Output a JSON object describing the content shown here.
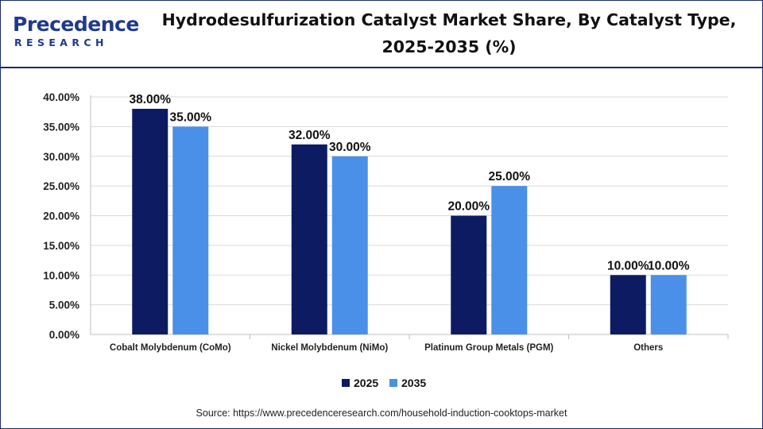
{
  "header": {
    "logo_main": "Precedence",
    "logo_sub": "RESEARCH",
    "title": "Hydrodesulfurization Catalyst Market Share, By Catalyst Type, 2025-2035 (%)"
  },
  "source": "Source: https://www.precedenceresearch.com/household-induction-cooktops-market",
  "chart_data": {
    "type": "bar",
    "title": "Hydrodesulfurization Catalyst Market Share, By Catalyst Type, 2025-2035 (%)",
    "xlabel": "",
    "ylabel": "",
    "categories": [
      "Cobalt Molybdenum (CoMo)",
      "Nickel Molybdenum (NiMo)",
      "Platinum Group Metals (PGM)",
      "Others"
    ],
    "series": [
      {
        "name": "2025",
        "values": [
          38.0,
          32.0,
          20.0,
          10.0
        ],
        "color": "#0d1b63"
      },
      {
        "name": "2035",
        "values": [
          35.0,
          30.0,
          25.0,
          10.0
        ],
        "color": "#4a90e8"
      }
    ],
    "ylim": [
      0,
      40
    ],
    "yticks": [
      "0.00%",
      "5.00%",
      "10.00%",
      "15.00%",
      "20.00%",
      "25.00%",
      "30.00%",
      "35.00%",
      "40.00%"
    ],
    "data_labels": [
      [
        "38.00%",
        "32.00%",
        "20.00%",
        "10.00%"
      ],
      [
        "35.00%",
        "30.00%",
        "25.00%",
        "10.00%"
      ]
    ],
    "grid": true,
    "legend_position": "bottom"
  }
}
